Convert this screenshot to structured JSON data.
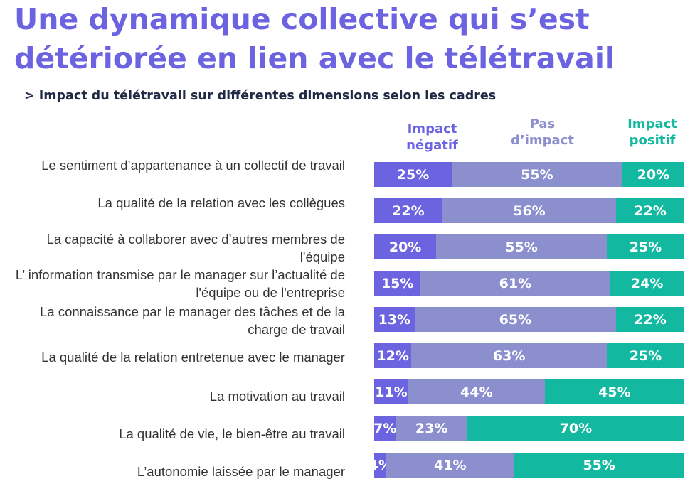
{
  "title": "Une dynamique collective qui s’est détériorée en lien avec le télétravail",
  "subtitle": "> Impact du télétravail sur différentes dimensions selon les cadres",
  "colors": {
    "negatif": "#6b63e0",
    "neutre": "#8c8fce",
    "positif": "#12b8a0"
  },
  "chart_data": {
    "type": "bar",
    "orientation": "horizontal",
    "stacked": true,
    "normalized_percent": true,
    "title": "Une dynamique collective qui s’est détériorée en lien avec le télétravail",
    "subtitle": "> Impact du télétravail sur différentes dimensions selon les cadres",
    "legend_placement": "top",
    "grid": false,
    "categories": [
      "Le sentiment d’appartenance à un collectif de travail",
      "La qualité de la relation avec les collègues",
      "La capacité à collaborer avec d’autres membres de l'équipe",
      "L’ information transmise par le manager sur l’actualité de l'équipe ou de l'entreprise",
      "La connaissance par le manager des tâches et de la charge de travail",
      "La qualité de la relation entretenue avec le manager",
      "La motivation au travail",
      "La qualité de vie, le bien-être au travail",
      "L’autonomie laissée par le manager"
    ],
    "series": [
      {
        "name": "Impact négatif",
        "values": [
          25,
          22,
          20,
          15,
          13,
          12,
          11,
          7,
          4
        ]
      },
      {
        "name": "Pas d’impact",
        "values": [
          55,
          56,
          55,
          61,
          65,
          63,
          44,
          23,
          41
        ]
      },
      {
        "name": "Impact positif",
        "values": [
          20,
          22,
          25,
          24,
          22,
          25,
          45,
          70,
          55
        ]
      }
    ]
  }
}
